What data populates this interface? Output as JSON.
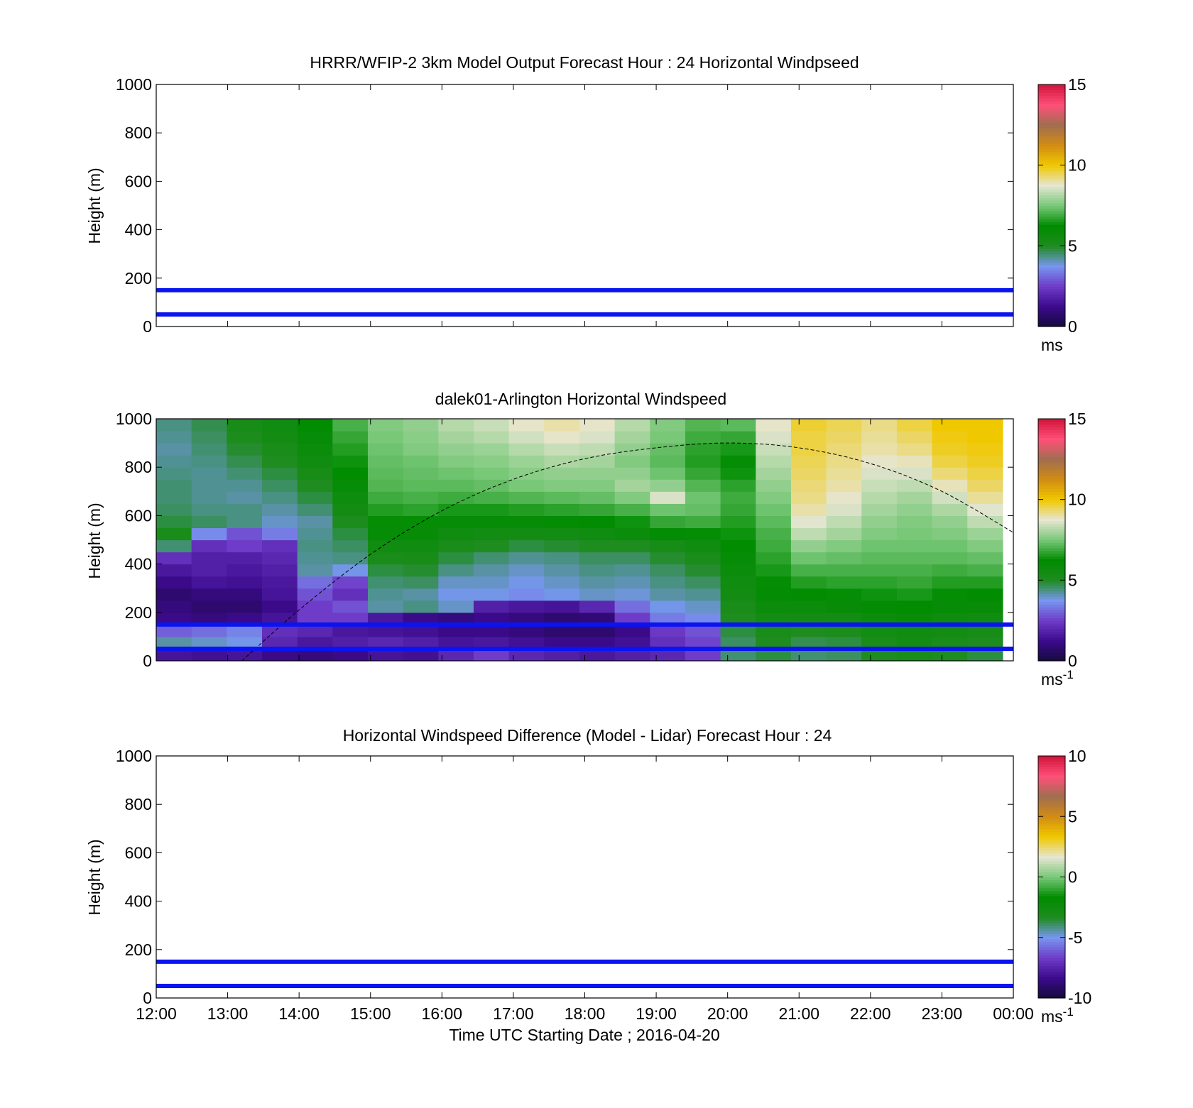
{
  "figure": {
    "xlabel": "Time UTC  Starting Date ; 2016-04-20",
    "x_tick_labels": [
      "12:00",
      "13:00",
      "14:00",
      "15:00",
      "16:00",
      "17:00",
      "18:00",
      "19:00",
      "20:00",
      "21:00",
      "22:00",
      "23:00",
      "00:00"
    ]
  },
  "colors": {
    "reference_lines": "#0a14f0",
    "colormap": [
      "#140a3c",
      "#3c0a8c",
      "#6e3cc8",
      "#7896f0",
      "#1e8c1e",
      "#008c00",
      "#78c878",
      "#e6e6d2",
      "#f0c800",
      "#d28c14",
      "#a06e50",
      "#ff5078",
      "#d2143c"
    ],
    "no_data": "#aaaaaa"
  },
  "chart_data": [
    {
      "type": "heatmap",
      "title": "HRRR/WFIP-2 3km Model Output   Forecast Hour : 24 Horizontal Windpseed",
      "ylabel": "Height (m)",
      "xlim": [
        "12:00",
        "00:00"
      ],
      "ylim": [
        0,
        1000
      ],
      "y_ticks": [
        0,
        200,
        400,
        600,
        800,
        1000
      ],
      "x_tick_labels_shown": false,
      "colorbar": {
        "min": 0,
        "max": 15,
        "ticks": [
          0,
          5,
          10,
          15
        ],
        "unit_label": "ms",
        "unit_sup": ""
      },
      "reference_lines_height_m": [
        50,
        150
      ],
      "values": []
    },
    {
      "type": "heatmap",
      "title": "dalek01-Arlington  Horizontal Windspeed",
      "ylabel": "Height (m)",
      "xlim": [
        "12:00",
        "00:00"
      ],
      "ylim": [
        0,
        1000
      ],
      "y_ticks": [
        0,
        200,
        400,
        600,
        800,
        1000
      ],
      "x_tick_labels_shown": false,
      "colorbar": {
        "min": 0,
        "max": 15,
        "ticks": [
          0,
          5,
          10,
          15
        ],
        "unit_label": "ms",
        "unit_sup": "-1"
      },
      "reference_lines_height_m": [
        50,
        150
      ],
      "dashed_curve": {
        "x_hours": [
          13.2,
          14.0,
          15.0,
          16.0,
          17.0,
          18.0,
          19.0,
          20.0,
          21.0,
          22.0,
          23.0,
          24.0
        ],
        "y_m": [
          0,
          210,
          440,
          620,
          750,
          835,
          880,
          900,
          880,
          815,
          700,
          530
        ]
      },
      "data_time_hours": [
        12.0,
        23.85
      ],
      "heights_m": [
        25,
        75,
        125,
        175,
        225,
        275,
        325,
        375,
        425,
        475,
        525,
        575,
        625,
        675,
        725,
        775,
        825,
        875,
        925,
        975
      ],
      "columns": [
        {
          "t": "12:00",
          "v": [
            1.5,
            4.2,
            3.0,
            1.2,
            1.0,
            0.8,
            1.2,
            1.6,
            2.2,
            4.5,
            5.2,
            4.8,
            4.6,
            4.5,
            4.5,
            4.4,
            4.3,
            4.2,
            4.3,
            4.4
          ]
        },
        {
          "t": "12:30",
          "v": [
            1.4,
            4.0,
            3.2,
            1.0,
            0.8,
            1.0,
            1.5,
            1.8,
            1.8,
            2.2,
            3.6,
            4.6,
            4.4,
            4.3,
            4.3,
            4.3,
            4.4,
            4.5,
            4.6,
            4.7
          ]
        },
        {
          "t": "13:00",
          "v": [
            1.5,
            3.8,
            3.5,
            1.2,
            0.8,
            1.0,
            1.4,
            1.6,
            1.8,
            2.5,
            2.8,
            4.4,
            4.4,
            4.2,
            4.3,
            4.5,
            4.7,
            4.9,
            5.1,
            5.3
          ]
        },
        {
          "t": "13:30",
          "v": [
            1.2,
            2.0,
            2.2,
            1.5,
            1.2,
            1.5,
            1.6,
            1.8,
            2.0,
            2.2,
            3.4,
            4.0,
            4.2,
            4.4,
            4.6,
            4.8,
            5.0,
            5.2,
            5.4,
            5.6
          ]
        },
        {
          "t": "14:00",
          "v": [
            1.0,
            1.6,
            2.0,
            2.5,
            2.5,
            2.8,
            3.2,
            4.2,
            4.3,
            4.4,
            4.3,
            4.2,
            4.5,
            4.8,
            5.0,
            5.3,
            5.6,
            5.8,
            6.0,
            6.2
          ]
        },
        {
          "t": "14:30",
          "v": [
            1.2,
            1.8,
            1.6,
            2.5,
            2.8,
            2.2,
            2.6,
            3.8,
            4.4,
            4.6,
            4.8,
            5.1,
            5.4,
            5.7,
            6.0,
            6.2,
            6.4,
            6.6,
            6.8,
            7.0
          ]
        },
        {
          "t": "15:00",
          "v": [
            1.5,
            2.0,
            1.5,
            1.6,
            4.2,
            4.3,
            4.5,
            4.8,
            5.2,
            5.6,
            6.0,
            6.3,
            6.6,
            6.9,
            7.1,
            7.2,
            7.3,
            7.4,
            7.5,
            7.6
          ]
        },
        {
          "t": "15:30",
          "v": [
            1.4,
            1.8,
            1.4,
            1.2,
            4.4,
            4.2,
            4.6,
            4.9,
            5.3,
            5.6,
            5.9,
            6.3,
            6.7,
            7.0,
            7.2,
            7.3,
            7.4,
            7.6,
            7.7,
            7.8
          ]
        },
        {
          "t": "16:00",
          "v": [
            2.0,
            1.5,
            1.2,
            1.0,
            4.0,
            3.8,
            4.0,
            4.4,
            4.8,
            5.2,
            5.6,
            6.0,
            6.5,
            6.9,
            7.2,
            7.4,
            7.6,
            7.8,
            8.0,
            8.2
          ]
        },
        {
          "t": "16:30",
          "v": [
            2.5,
            1.6,
            1.2,
            1.2,
            1.8,
            3.8,
            4.0,
            4.2,
            4.5,
            5.0,
            5.5,
            6.0,
            6.5,
            7.0,
            7.3,
            7.5,
            7.7,
            7.9,
            8.2,
            8.4
          ]
        },
        {
          "t": "17:00",
          "v": [
            2.0,
            1.4,
            1.0,
            1.0,
            1.6,
            3.6,
            3.8,
            4.0,
            4.3,
            4.8,
            5.4,
            6.0,
            6.6,
            7.1,
            7.5,
            7.7,
            7.9,
            8.2,
            8.5,
            8.8
          ]
        },
        {
          "t": "17:30",
          "v": [
            1.8,
            1.2,
            0.8,
            0.8,
            1.5,
            3.8,
            4.0,
            4.2,
            4.4,
            4.9,
            5.5,
            6.1,
            6.7,
            7.2,
            7.6,
            7.8,
            8.1,
            8.4,
            8.8,
            9.0
          ]
        },
        {
          "t": "18:00",
          "v": [
            1.6,
            1.2,
            0.8,
            0.9,
            2.0,
            4.0,
            4.2,
            4.4,
            4.6,
            5.0,
            5.6,
            6.2,
            6.8,
            7.3,
            7.6,
            7.8,
            8.0,
            8.3,
            8.6,
            8.8
          ]
        },
        {
          "t": "18:30",
          "v": [
            1.8,
            1.4,
            1.2,
            2.5,
            3.2,
            3.9,
            4.1,
            4.3,
            4.6,
            5.0,
            5.8,
            6.4,
            7.0,
            7.6,
            8.0,
            7.8,
            7.6,
            7.8,
            8.0,
            8.2
          ]
        },
        {
          "t": "19:00",
          "v": [
            2.0,
            2.2,
            2.4,
            3.4,
            3.8,
            4.2,
            4.4,
            4.6,
            4.9,
            5.3,
            6.1,
            6.8,
            7.4,
            8.6,
            7.8,
            7.4,
            7.2,
            7.3,
            7.5,
            7.6
          ]
        },
        {
          "t": "19:30",
          "v": [
            2.5,
            2.6,
            2.8,
            3.6,
            4.0,
            4.3,
            4.6,
            4.9,
            5.2,
            5.6,
            6.3,
            6.9,
            7.3,
            7.4,
            7.1,
            6.8,
            6.6,
            6.7,
            6.9,
            7.1
          ]
        },
        {
          "t": "20:00",
          "v": [
            4.5,
            4.6,
            4.8,
            5.0,
            5.2,
            5.4,
            5.6,
            5.8,
            6.0,
            6.2,
            6.4,
            6.6,
            6.8,
            6.9,
            6.7,
            6.4,
            6.3,
            6.5,
            6.8,
            7.2
          ]
        },
        {
          "t": "20:30",
          "v": [
            4.8,
            5.0,
            5.2,
            5.5,
            5.8,
            6.1,
            6.3,
            6.5,
            6.7,
            6.9,
            7.0,
            7.2,
            7.4,
            7.6,
            7.8,
            8.0,
            8.2,
            8.4,
            8.6,
            8.8
          ]
        },
        {
          "t": "21:00",
          "v": [
            4.5,
            4.7,
            5.0,
            5.4,
            5.8,
            6.2,
            6.6,
            7.0,
            7.4,
            7.8,
            8.3,
            8.7,
            9.0,
            9.2,
            9.3,
            9.4,
            9.5,
            9.6,
            9.6,
            9.7
          ]
        },
        {
          "t": "21:30",
          "v": [
            4.6,
            4.8,
            5.1,
            5.5,
            5.9,
            6.3,
            6.7,
            7.0,
            7.3,
            7.6,
            8.0,
            8.3,
            8.6,
            8.8,
            9.0,
            9.1,
            9.2,
            9.3,
            9.4,
            9.5
          ]
        },
        {
          "t": "22:00",
          "v": [
            5.0,
            5.2,
            5.5,
            5.8,
            6.1,
            6.4,
            6.7,
            7.0,
            7.2,
            7.4,
            7.6,
            7.8,
            8.0,
            8.2,
            8.4,
            8.6,
            8.8,
            9.0,
            9.1,
            9.2
          ]
        },
        {
          "t": "22:30",
          "v": [
            5.2,
            5.4,
            5.6,
            5.9,
            6.2,
            6.5,
            6.8,
            7.0,
            7.2,
            7.4,
            7.5,
            7.6,
            7.8,
            8.0,
            8.3,
            8.6,
            8.9,
            9.2,
            9.4,
            9.6
          ]
        },
        {
          "t": "23:00",
          "v": [
            5.0,
            5.2,
            5.4,
            5.7,
            6.0,
            6.3,
            6.6,
            6.9,
            7.2,
            7.4,
            7.6,
            7.8,
            8.1,
            8.5,
            8.9,
            9.3,
            9.6,
            9.8,
            9.9,
            10.0
          ]
        },
        {
          "t": "23:30",
          "v": [
            4.8,
            5.0,
            5.3,
            5.6,
            5.9,
            6.2,
            6.6,
            7.0,
            7.3,
            7.6,
            7.9,
            8.3,
            8.7,
            9.1,
            9.4,
            9.6,
            9.8,
            9.9,
            10.0,
            10.0
          ]
        }
      ]
    },
    {
      "type": "heatmap",
      "title": "Horizontal Windspeed Difference (Model - Lidar) Forecast Hour : 24",
      "ylabel": "Height (m)",
      "xlim": [
        "12:00",
        "00:00"
      ],
      "ylim": [
        0,
        1000
      ],
      "y_ticks": [
        0,
        200,
        400,
        600,
        800,
        1000
      ],
      "x_tick_labels_shown": true,
      "colorbar": {
        "min": -10,
        "max": 10,
        "ticks": [
          -10,
          -5,
          0,
          5,
          10
        ],
        "unit_label": "ms",
        "unit_sup": "-1"
      },
      "reference_lines_height_m": [
        50,
        150
      ],
      "values": []
    }
  ]
}
